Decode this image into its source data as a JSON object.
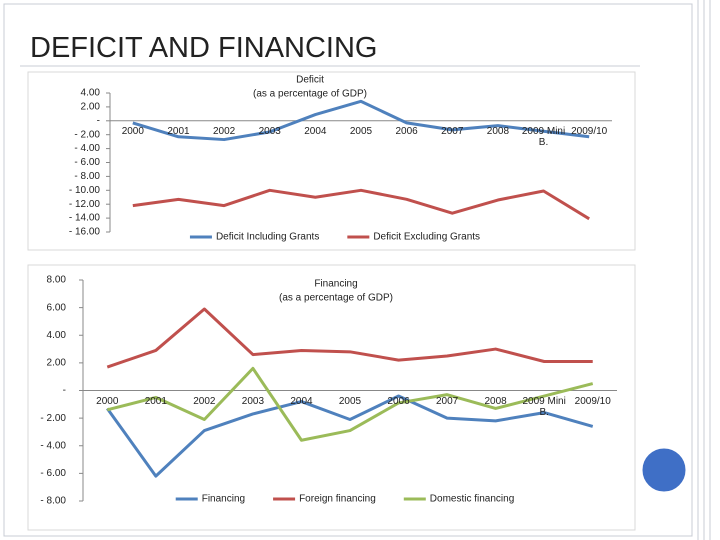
{
  "title": "DEFICIT AND FINANCING",
  "chart_data": [
    {
      "type": "line",
      "title": "Deficit",
      "subtitle": "(as a percentage of GDP)",
      "categories": [
        "2000",
        "2001",
        "2002",
        "2003",
        "2004",
        "2005",
        "2006",
        "2007",
        "2008",
        "2009 Mini B.",
        "2009/10"
      ],
      "series": [
        {
          "name": "Deficit Including Grants",
          "color": "#4f81bd",
          "values": [
            -0.3,
            -2.3,
            -2.7,
            -1.6,
            0.9,
            2.8,
            -0.3,
            -1.3,
            -0.7,
            -1.5,
            -2.3
          ]
        },
        {
          "name": "Deficit Excluding Grants",
          "color": "#c0504d",
          "values": [
            -12.2,
            -11.3,
            -12.2,
            -10.0,
            -11.0,
            -10.0,
            -11.3,
            -13.3,
            -11.4,
            -10.1,
            -14.1
          ]
        }
      ],
      "ylim": [
        -16,
        4
      ],
      "yticks": [
        {
          "value": 4,
          "label": "4.00"
        },
        {
          "value": 2,
          "label": "2.00"
        },
        {
          "value": 0,
          "label": "-"
        },
        {
          "value": -2,
          "label": "- 2.00"
        },
        {
          "value": -4,
          "label": "- 4.00"
        },
        {
          "value": -6,
          "label": "- 6.00"
        },
        {
          "value": -8,
          "label": "- 8.00"
        },
        {
          "value": -10,
          "label": "- 10.00"
        },
        {
          "value": -12,
          "label": "- 12.00"
        },
        {
          "value": -14,
          "label": "- 14.00"
        },
        {
          "value": -16,
          "label": "- 16.00"
        }
      ],
      "grid": false,
      "legend": "bottom"
    },
    {
      "type": "line",
      "title": "Financing",
      "subtitle": "(as a percentage of GDP)",
      "categories": [
        "2000",
        "2001",
        "2002",
        "2003",
        "2004",
        "2005",
        "2006",
        "2007",
        "2008",
        "2009 Mini B.",
        "2009/10"
      ],
      "series": [
        {
          "name": "Financing",
          "color": "#4f81bd",
          "values": [
            -1.3,
            -6.2,
            -2.9,
            -1.7,
            -0.8,
            -2.1,
            -0.4,
            -2.0,
            -2.2,
            -1.6,
            -2.6
          ]
        },
        {
          "name": "Foreign financing",
          "color": "#c0504d",
          "values": [
            1.7,
            2.9,
            5.9,
            2.6,
            2.9,
            2.8,
            2.2,
            2.5,
            3.0,
            2.1,
            2.1
          ]
        },
        {
          "name": "Domestic financing",
          "color": "#9bbb59",
          "values": [
            -1.4,
            -0.5,
            -2.1,
            1.6,
            -3.6,
            -2.9,
            -0.9,
            -0.3,
            -1.3,
            -0.4,
            0.5
          ]
        }
      ],
      "ylim": [
        -8,
        8
      ],
      "yticks": [
        {
          "value": 8,
          "label": "8.00"
        },
        {
          "value": 6,
          "label": "6.00"
        },
        {
          "value": 4,
          "label": "4.00"
        },
        {
          "value": 2,
          "label": "2.00"
        },
        {
          "value": 0,
          "label": "-"
        },
        {
          "value": -2,
          "label": "- 2.00"
        },
        {
          "value": -4,
          "label": "- 4.00"
        },
        {
          "value": -6,
          "label": "- 6.00"
        },
        {
          "value": -8,
          "label": "- 8.00"
        }
      ],
      "grid": false,
      "legend": "bottom"
    }
  ]
}
